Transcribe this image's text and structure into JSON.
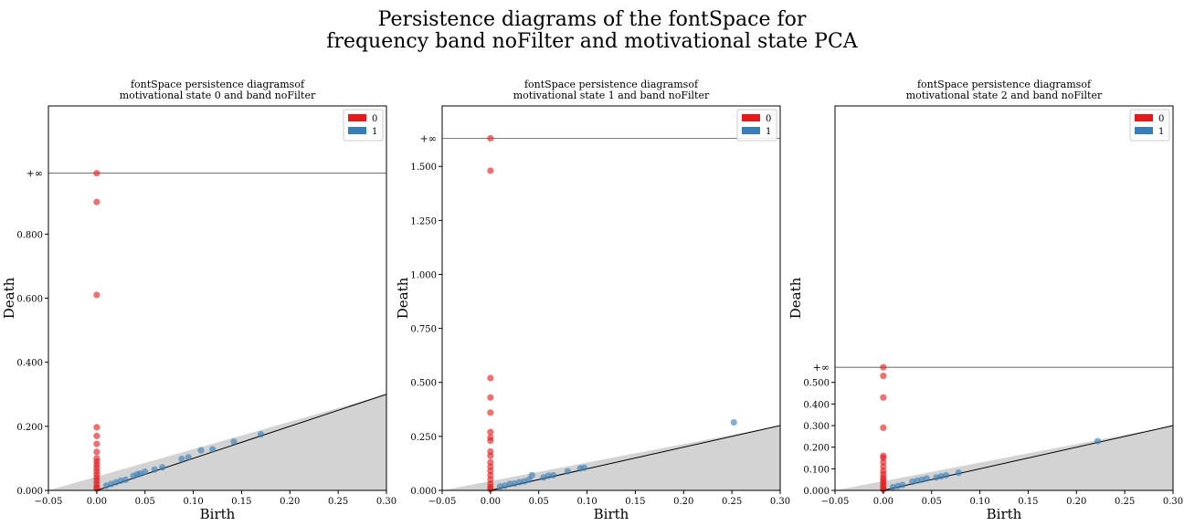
{
  "suptitle": {
    "line1": "Persistence diagrams of the fontSpace for",
    "line2": "frequency band noFilter and motivational state PCA"
  },
  "colors": {
    "h0": "#e41a1c",
    "h1": "#377eb8",
    "diagonal_fill": "#d3d3d3"
  },
  "chart_data": [
    {
      "type": "scatter",
      "title_line1": "fontSpace persistence diagramsof",
      "title_line2": "motivational state 0 and band noFilter",
      "xlabel": "Birth",
      "ylabel": "Death",
      "xlim": [
        -0.05,
        0.3
      ],
      "ylim": [
        0.0,
        1.2
      ],
      "inf_value": 0.99,
      "inf_label": "+∞",
      "xticks": [
        -0.05,
        0.0,
        0.05,
        0.1,
        0.15,
        0.2,
        0.25,
        0.3
      ],
      "xtick_labels": [
        "−0.05",
        "0.00",
        "0.05",
        "0.10",
        "0.15",
        "0.20",
        "0.25",
        "0.30"
      ],
      "yticks": [
        0.0,
        0.2,
        0.4,
        0.6,
        0.8
      ],
      "ytick_labels": [
        "0.000",
        "0.200",
        "0.400",
        "0.600",
        "0.800"
      ],
      "legend": [
        "0",
        "1"
      ],
      "series": [
        {
          "name": "0",
          "color": "#e41a1c",
          "points": [
            [
              0,
              0.99
            ],
            [
              0,
              0.9
            ],
            [
              0,
              0.61
            ],
            [
              0,
              0.197
            ],
            [
              0,
              0.17
            ],
            [
              0,
              0.145
            ],
            [
              0,
              0.12
            ],
            [
              0,
              0.1
            ],
            [
              0,
              0.09
            ],
            [
              0,
              0.08
            ],
            [
              0,
              0.07
            ],
            [
              0,
              0.06
            ],
            [
              0,
              0.05
            ],
            [
              0,
              0.04
            ],
            [
              0,
              0.03
            ],
            [
              0,
              0.02
            ],
            [
              0,
              0.01
            ],
            [
              0,
              0.005
            ]
          ]
        },
        {
          "name": "1",
          "color": "#377eb8",
          "points": [
            [
              0.01,
              0.015
            ],
            [
              0.015,
              0.02
            ],
            [
              0.02,
              0.025
            ],
            [
              0.025,
              0.03
            ],
            [
              0.03,
              0.033
            ],
            [
              0.038,
              0.045
            ],
            [
              0.042,
              0.05
            ],
            [
              0.045,
              0.052
            ],
            [
              0.05,
              0.058
            ],
            [
              0.06,
              0.065
            ],
            [
              0.068,
              0.072
            ],
            [
              0.088,
              0.098
            ],
            [
              0.095,
              0.103
            ],
            [
              0.108,
              0.125
            ],
            [
              0.12,
              0.128
            ],
            [
              0.142,
              0.152
            ],
            [
              0.17,
              0.175
            ]
          ]
        }
      ]
    },
    {
      "type": "scatter",
      "title_line1": "fontSpace persistence diagramsof",
      "title_line2": "motivational state 1 and band noFilter",
      "xlabel": "Birth",
      "ylabel": "Death",
      "xlim": [
        -0.05,
        0.3
      ],
      "ylim": [
        0.0,
        1.78
      ],
      "inf_value": 1.63,
      "inf_label": "+∞",
      "xticks": [
        -0.05,
        0.0,
        0.05,
        0.1,
        0.15,
        0.2,
        0.25,
        0.3
      ],
      "xtick_labels": [
        "−0.05",
        "0.00",
        "0.05",
        "0.10",
        "0.15",
        "0.20",
        "0.25",
        "0.30"
      ],
      "yticks": [
        0.0,
        0.25,
        0.5,
        0.75,
        1.0,
        1.25,
        1.5
      ],
      "ytick_labels": [
        "0.000",
        "0.250",
        "0.500",
        "0.750",
        "1.000",
        "1.250",
        "1.500"
      ],
      "legend": [
        "0",
        "1"
      ],
      "series": [
        {
          "name": "0",
          "color": "#e41a1c",
          "points": [
            [
              0,
              1.63
            ],
            [
              0,
              1.48
            ],
            [
              0,
              0.52
            ],
            [
              0,
              0.43
            ],
            [
              0,
              0.36
            ],
            [
              0,
              0.27
            ],
            [
              0,
              0.245
            ],
            [
              0,
              0.23
            ],
            [
              0,
              0.18
            ],
            [
              0,
              0.16
            ],
            [
              0,
              0.13
            ],
            [
              0,
              0.11
            ],
            [
              0,
              0.09
            ],
            [
              0,
              0.07
            ],
            [
              0,
              0.05
            ],
            [
              0,
              0.03
            ],
            [
              0,
              0.015
            ],
            [
              0,
              0.005
            ]
          ]
        },
        {
          "name": "1",
          "color": "#377eb8",
          "points": [
            [
              0.01,
              0.018
            ],
            [
              0.015,
              0.022
            ],
            [
              0.02,
              0.03
            ],
            [
              0.025,
              0.032
            ],
            [
              0.03,
              0.038
            ],
            [
              0.035,
              0.042
            ],
            [
              0.04,
              0.05
            ],
            [
              0.043,
              0.07
            ],
            [
              0.055,
              0.06
            ],
            [
              0.06,
              0.068
            ],
            [
              0.065,
              0.07
            ],
            [
              0.08,
              0.088
            ],
            [
              0.093,
              0.102
            ],
            [
              0.097,
              0.105
            ],
            [
              0.252,
              0.315
            ]
          ]
        }
      ]
    },
    {
      "type": "scatter",
      "title_line1": "fontSpace persistence diagramsof",
      "title_line2": "motivational state 2 and band noFilter",
      "xlabel": "Birth",
      "ylabel": "Death",
      "xlim": [
        -0.05,
        0.3
      ],
      "ylim": [
        0.0,
        1.78
      ],
      "inf_value": 0.57,
      "inf_label": "+∞",
      "xticks": [
        -0.05,
        0.0,
        0.05,
        0.1,
        0.15,
        0.2,
        0.25,
        0.3
      ],
      "xtick_labels": [
        "−0.05",
        "0.00",
        "0.05",
        "0.10",
        "0.15",
        "0.20",
        "0.25",
        "0.30"
      ],
      "yticks": [
        0.0,
        0.1,
        0.2,
        0.3,
        0.4,
        0.5
      ],
      "ytick_labels": [
        "0.000",
        "0.100",
        "0.200",
        "0.300",
        "0.400",
        "0.500"
      ],
      "legend": [
        "0",
        "1"
      ],
      "series": [
        {
          "name": "0",
          "color": "#e41a1c",
          "points": [
            [
              0,
              0.57
            ],
            [
              0,
              0.53
            ],
            [
              0,
              0.43
            ],
            [
              0,
              0.29
            ],
            [
              0,
              0.16
            ],
            [
              0,
              0.15
            ],
            [
              0,
              0.13
            ],
            [
              0,
              0.11
            ],
            [
              0,
              0.09
            ],
            [
              0,
              0.075
            ],
            [
              0,
              0.06
            ],
            [
              0,
              0.05
            ],
            [
              0,
              0.04
            ],
            [
              0,
              0.03
            ],
            [
              0,
              0.02
            ],
            [
              0,
              0.01
            ],
            [
              0,
              0.003
            ]
          ]
        },
        {
          "name": "1",
          "color": "#377eb8",
          "points": [
            [
              0.01,
              0.015
            ],
            [
              0.015,
              0.02
            ],
            [
              0.02,
              0.025
            ],
            [
              0.03,
              0.04
            ],
            [
              0.035,
              0.045
            ],
            [
              0.04,
              0.05
            ],
            [
              0.045,
              0.055
            ],
            [
              0.055,
              0.06
            ],
            [
              0.06,
              0.065
            ],
            [
              0.065,
              0.07
            ],
            [
              0.078,
              0.082
            ],
            [
              0.222,
              0.228
            ]
          ]
        }
      ]
    }
  ]
}
